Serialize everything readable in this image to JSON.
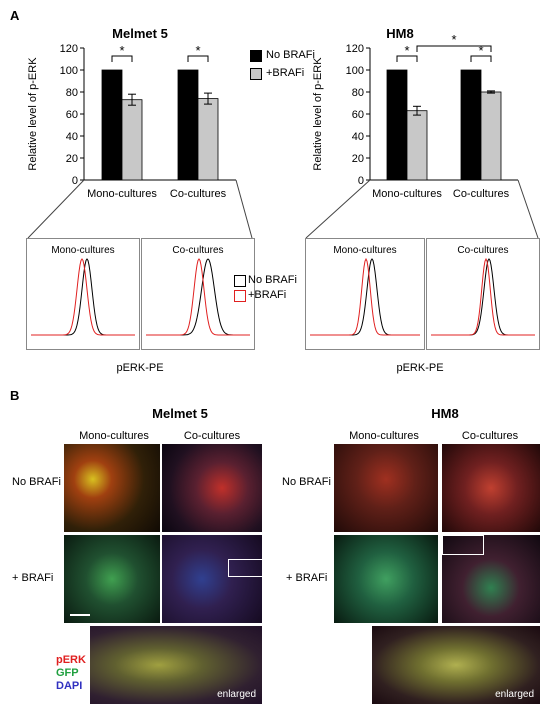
{
  "panel_a": {
    "label": "A",
    "melmet_title": "Melmet 5",
    "hm8_title": "HM8",
    "ylabel": "Relative level of p-ERK",
    "legend": {
      "no_brafi": "No BRAFi",
      "brafi": "+BRAFi"
    },
    "sig_mark": "*",
    "hist_sublabels": {
      "mono": "Mono-cultures",
      "co": "Co-cultures"
    },
    "hist_xlabel": "pERK-PE",
    "hist_legend": {
      "no_brafi": "No BRAFi",
      "brafi": "+BRAFi"
    }
  },
  "chart_data": [
    {
      "type": "bar",
      "title": "Melmet 5",
      "ylabel": "Relative level of p-ERK",
      "categories": [
        "Mono-cultures",
        "Co-cultures"
      ],
      "series": [
        {
          "name": "No BRAFi",
          "values": [
            100,
            100
          ],
          "errors": [
            0,
            0
          ]
        },
        {
          "name": "+BRAFi",
          "values": [
            73,
            74
          ],
          "errors": [
            5,
            5
          ]
        }
      ],
      "ylim": [
        0,
        120
      ],
      "yticks": [
        0,
        20,
        40,
        60,
        80,
        100,
        120
      ],
      "significance": [
        "Mono-cultures",
        "Co-cultures"
      ]
    },
    {
      "type": "bar",
      "title": "HM8",
      "ylabel": "Relative level of p-ERK",
      "categories": [
        "Mono-cultures",
        "Co-cultures"
      ],
      "series": [
        {
          "name": "No BRAFi",
          "values": [
            100,
            100
          ],
          "errors": [
            0,
            0
          ]
        },
        {
          "name": "+BRAFi",
          "values": [
            63,
            80
          ],
          "errors": [
            4,
            1
          ]
        }
      ],
      "ylim": [
        0,
        120
      ],
      "yticks": [
        0,
        20,
        40,
        60,
        80,
        100,
        120
      ],
      "significance": [
        "Mono-cultures",
        "Co-cultures",
        "between +BRAFi"
      ]
    }
  ],
  "panel_b": {
    "label": "B",
    "melmet_title": "Melmet 5",
    "hm8_title": "HM8",
    "col_mono": "Mono-cultures",
    "col_co": "Co-cultures",
    "row_no": "No BRAFi",
    "row_plus": "+ BRAFi",
    "stain_perk": "pERK",
    "stain_gfp": "GFP",
    "stain_dapi": "DAPI",
    "enlarged": "enlarged",
    "colors": {
      "perk": "#e02020",
      "gfp": "#20a040",
      "dapi": "#3030c0"
    }
  }
}
